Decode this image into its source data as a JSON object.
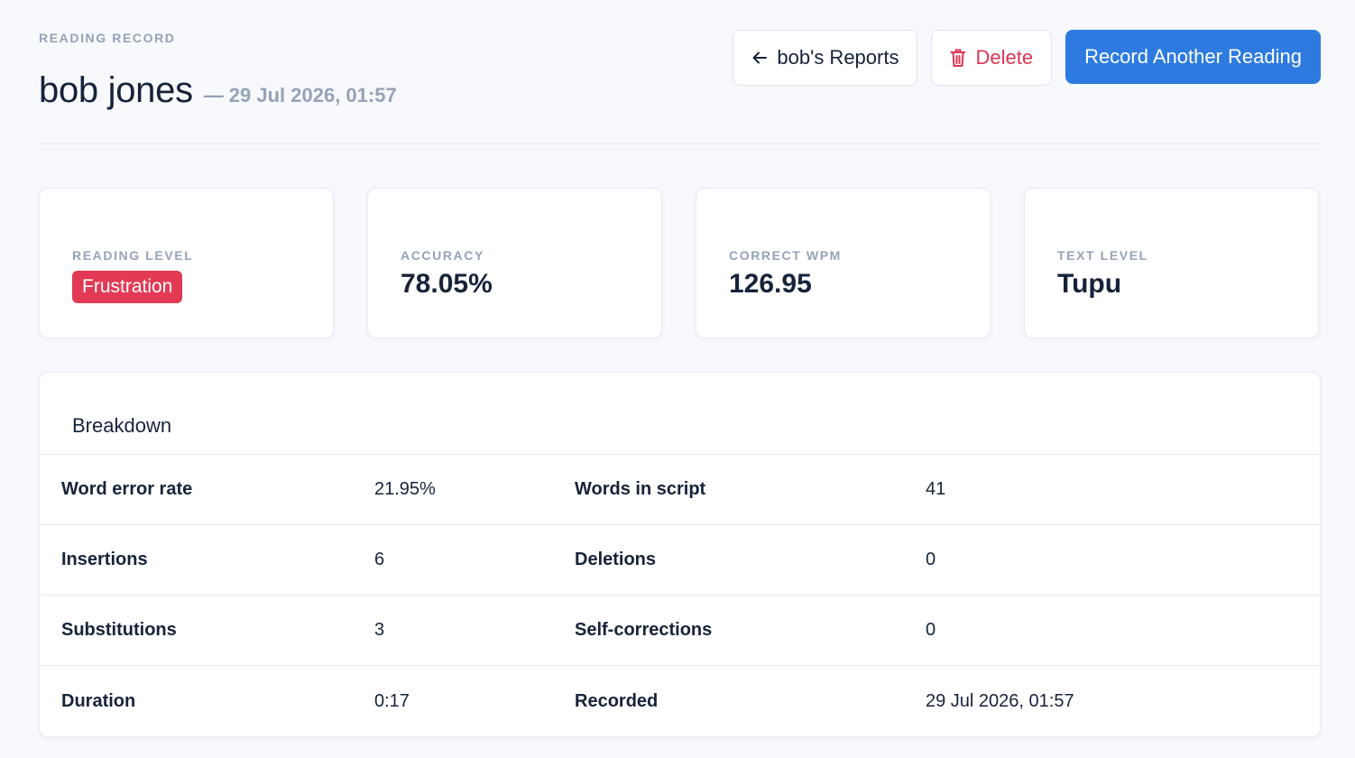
{
  "header": {
    "eyebrow": "READING RECORD",
    "student_name": "bob jones",
    "separator": "—",
    "date": "29 Jul 2026, 01:57"
  },
  "actions": {
    "back_label": "bob's Reports",
    "delete_label": "Delete",
    "record_label": "Record Another Reading"
  },
  "stats": [
    {
      "label": "READING LEVEL",
      "value": "Frustration",
      "badge_color": "#e23a55"
    },
    {
      "label": "ACCURACY",
      "value": "78.05%"
    },
    {
      "label": "CORRECT WPM",
      "value": "126.95"
    },
    {
      "label": "TEXT LEVEL",
      "value": "Tupu"
    }
  ],
  "breakdown": {
    "title": "Breakdown",
    "rows": [
      {
        "l1": "Word error rate",
        "v1": "21.95%",
        "l2": "Words in script",
        "v2": "41"
      },
      {
        "l1": "Insertions",
        "v1": "6",
        "l2": "Deletions",
        "v2": "0"
      },
      {
        "l1": "Substitutions",
        "v1": "3",
        "l2": "Self-corrections",
        "v2": "0"
      },
      {
        "l1": "Duration",
        "v1": "0:17",
        "l2": "Recorded",
        "v2": "29 Jul 2026, 01:57"
      }
    ]
  },
  "colors": {
    "primary": "#2d7be0",
    "danger": "#dd3552",
    "muted": "#95a3b8",
    "text": "#16233a"
  },
  "icons": {
    "back": "arrow-left-icon",
    "delete": "trash-icon"
  }
}
